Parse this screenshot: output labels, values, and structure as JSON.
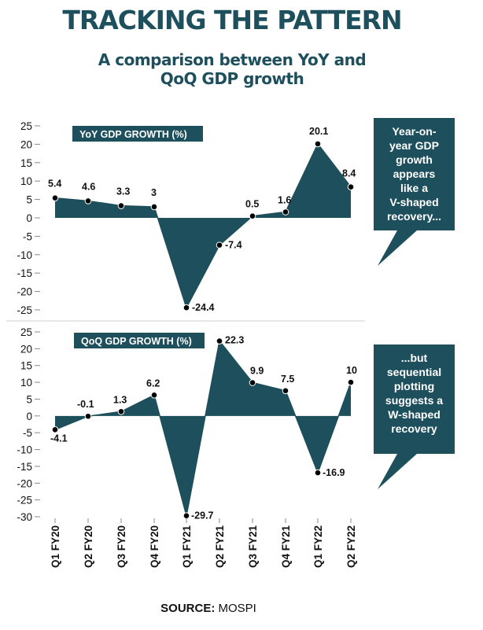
{
  "header": {
    "title": "TRACKING THE PATTERN",
    "subtitle_lines": [
      "A comparison between YoY and",
      "QoQ GDP growth"
    ]
  },
  "colors": {
    "fill": "#1d4f5c",
    "text": "#111111",
    "title": "#1d4f5c",
    "callout_bg": "#1d4f5c",
    "callout_text": "#ffffff",
    "divider": "#cccccc"
  },
  "chart_data": [
    {
      "type": "area",
      "label": "YoY GDP GROWTH (%)",
      "categories": [
        "Q1 FY20",
        "Q2 FY20",
        "Q3 FY20",
        "Q4 FY20",
        "Q1 FY21",
        "Q2 FY21",
        "Q3 FY21",
        "Q4 FY21",
        "Q1 FY22",
        "Q2 FY22"
      ],
      "values": [
        5.4,
        4.6,
        3.3,
        3,
        -24.4,
        -7.4,
        0.5,
        1.6,
        20.1,
        8.4
      ],
      "value_labels": [
        "5.4",
        "4.6",
        "3.3",
        "3",
        "-24.4",
        "-7.4",
        "0.5",
        "1.6",
        "20.1",
        "8.4"
      ],
      "ylim": [
        -25,
        25
      ],
      "yticks": [
        25,
        20,
        15,
        10,
        5,
        0,
        -5,
        -10,
        -15,
        -20,
        -25
      ],
      "callout": [
        "Year-on-",
        "year GDP",
        "growth",
        "appears",
        "like a",
        "V-shaped",
        "recovery..."
      ]
    },
    {
      "type": "area",
      "label": "QoQ GDP GROWTH (%)",
      "categories": [
        "Q1 FY20",
        "Q2 FY20",
        "Q3 FY20",
        "Q4 FY20",
        "Q1 FY21",
        "Q2 FY21",
        "Q3 FY21",
        "Q4 FY21",
        "Q1 FY22",
        "Q2 FY22"
      ],
      "values": [
        -4.1,
        -0.1,
        1.3,
        6.2,
        -29.7,
        22.3,
        9.9,
        7.5,
        -16.9,
        10
      ],
      "value_labels": [
        "-4.1",
        "-0.1",
        "1.3",
        "6.2",
        "-29.7",
        "22.3",
        "9.9",
        "7.5",
        "-16.9",
        "10"
      ],
      "ylim": [
        -30,
        25
      ],
      "yticks": [
        25,
        20,
        15,
        10,
        5,
        0,
        -5,
        -10,
        -15,
        -20,
        -25,
        -30
      ],
      "callout": [
        "...but",
        "sequential",
        "plotting",
        "suggests a",
        "W-shaped",
        "recovery"
      ]
    }
  ],
  "source": {
    "label": "SOURCE:",
    "value": "MOSPI"
  }
}
